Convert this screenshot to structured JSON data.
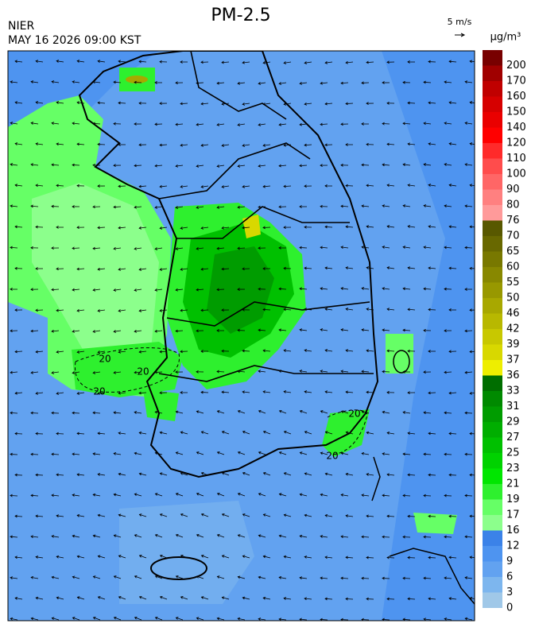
{
  "header": {
    "title": "PM-2.5",
    "agency": "NIER",
    "datetime": "MAY 16 2026 09:00 KST",
    "wind_scale": "5 m/s",
    "unit": "μg/m³"
  },
  "colorbar": {
    "labels": [
      0,
      3,
      6,
      9,
      12,
      16,
      17,
      19,
      21,
      23,
      25,
      27,
      29,
      31,
      33,
      36,
      37,
      39,
      42,
      46,
      50,
      55,
      60,
      65,
      70,
      76,
      80,
      90,
      100,
      110,
      120,
      140,
      150,
      160,
      170,
      200
    ],
    "colors": [
      "#a0c8e8",
      "#7db6ee",
      "#62a2f0",
      "#4e94f0",
      "#3b82e8",
      "#8cff8c",
      "#66ff66",
      "#2ef02e",
      "#00e600",
      "#00d200",
      "#00c000",
      "#00ae00",
      "#009c00",
      "#008a00",
      "#006e00",
      "#eeee00",
      "#d8d800",
      "#c8c800",
      "#b8b800",
      "#a8a800",
      "#989800",
      "#888800",
      "#787800",
      "#686800",
      "#585800",
      "#ff9a9a",
      "#ff8080",
      "#ff6666",
      "#ff4c4c",
      "#ff2a2a",
      "#ff0000",
      "#ea0000",
      "#d60000",
      "#c00000",
      "#a00000",
      "#780000"
    ]
  },
  "contour_labels": [
    "20",
    "20",
    "20",
    "20",
    "20"
  ]
}
